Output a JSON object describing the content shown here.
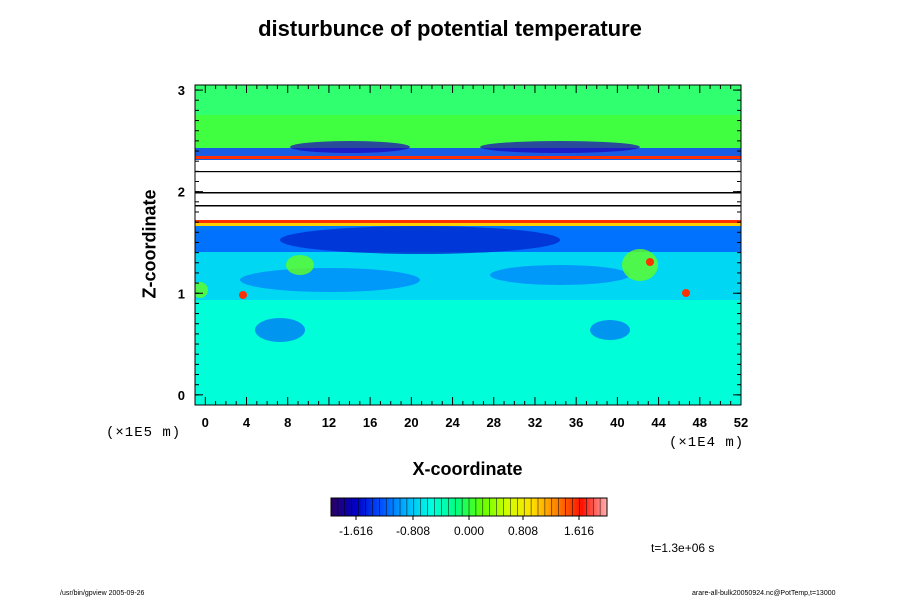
{
  "chart_data": {
    "type": "heatmap",
    "title": "disturbunce of potential temperature",
    "xlabel": "X-coordinate",
    "ylabel": "Z-coordinate",
    "x_unit": "(×1E4 m)",
    "y_unit": "(×1E5 m)",
    "xlim": [
      -1,
      52
    ],
    "ylim": [
      -0.1,
      3.05
    ],
    "x_ticks": [
      0,
      4,
      8,
      12,
      16,
      20,
      24,
      28,
      32,
      36,
      40,
      44,
      48,
      52
    ],
    "y_ticks": [
      0,
      1,
      2,
      3
    ],
    "colorbar": {
      "ticks": [
        "-1.616",
        "-0.808",
        "0.000",
        "0.808",
        "1.616"
      ],
      "colors": [
        "#2a0060",
        "#0000c8",
        "#0050ff",
        "#00b4ff",
        "#00ffe0",
        "#00ff80",
        "#60ff00",
        "#d0ff00",
        "#ffe000",
        "#ff8000",
        "#ff1000",
        "#ffb0b0"
      ]
    },
    "time_label": "t=1.3e+06 s",
    "grid": false
  },
  "footer": {
    "left": "/usr/bin/gpview 2005-09-26",
    "right": "arare-all-bulk20050924.nc@PotTemp,t=13000"
  }
}
